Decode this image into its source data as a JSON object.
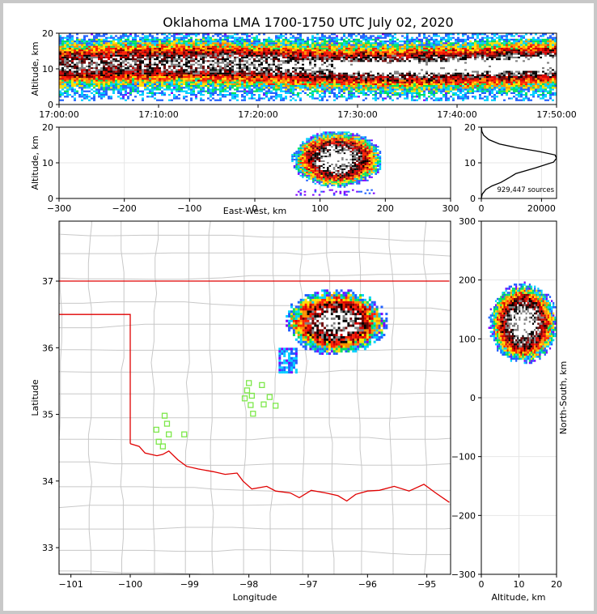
{
  "title": "Oklahoma LMA 1700-1750 UTC July 02, 2020",
  "colors": {
    "state_border": "#e00000",
    "county_lines": "#c8c8c8",
    "stations": "#7de84a",
    "grid": "#e6e6e6",
    "density_scale": [
      "#7a00ff",
      "#2060ff",
      "#00d0ff",
      "#00e060",
      "#ffe000",
      "#ff9000",
      "#ff2000",
      "#d80000",
      "#700000",
      "#000000",
      "#808080",
      "#ffffff"
    ]
  },
  "chart_data": [
    {
      "name": "time-altitude",
      "type": "heatmap",
      "ylabel": "Altitude, km",
      "ylim": [
        0,
        20
      ],
      "yticks": [
        "0",
        "10",
        "20"
      ],
      "xticks": [
        "17:00:00",
        "17:10:00",
        "17:20:00",
        "17:30:00",
        "17:40:00",
        "17:50:00"
      ],
      "x_range_minutes": [
        0,
        50
      ]
    },
    {
      "name": "east-west-altitude",
      "type": "heatmap",
      "xlabel": "East-West, km",
      "ylabel": "Altitude, km",
      "xlim": [
        -300,
        300
      ],
      "ylim": [
        0,
        20
      ],
      "xticks": [
        "−300",
        "−200",
        "−100",
        "0",
        "100",
        "200",
        "300"
      ],
      "yticks": [
        "0",
        "10",
        "20"
      ]
    },
    {
      "name": "altitude-histogram",
      "type": "line",
      "xlim": [
        0,
        25000
      ],
      "ylim": [
        0,
        20
      ],
      "xticks": [
        "0",
        "20000"
      ],
      "yticks": [
        "0",
        "10",
        "20"
      ],
      "annotation": "929,447 sources",
      "x": [
        0,
        300,
        1500,
        3500,
        6500,
        9200,
        11500,
        18000,
        24000,
        25000,
        24500,
        19000,
        12000,
        6000,
        2500,
        800,
        200,
        50
      ],
      "y": [
        0,
        1.2,
        2.5,
        3.5,
        4.5,
        5.8,
        7.0,
        8.6,
        10.2,
        11.3,
        12.2,
        13.2,
        14.2,
        15.3,
        16.5,
        17.7,
        18.8,
        20
      ]
    },
    {
      "name": "plan-view",
      "type": "heatmap",
      "xlabel": "Longitude",
      "ylabel": "Latitude",
      "xlim": [
        -101.2,
        -94.6
      ],
      "ylim": [
        32.6,
        37.9
      ],
      "xticks": [
        "−101",
        "−100",
        "−99",
        "−98",
        "−97",
        "−96",
        "−95"
      ],
      "yticks": [
        "33",
        "34",
        "35",
        "36",
        "37"
      ],
      "stations_lonlat": [
        [
          -98.0,
          35.47
        ],
        [
          -98.03,
          35.36
        ],
        [
          -97.78,
          35.44
        ],
        [
          -98.07,
          35.24
        ],
        [
          -97.95,
          35.28
        ],
        [
          -97.65,
          35.26
        ],
        [
          -97.97,
          35.14
        ],
        [
          -97.75,
          35.15
        ],
        [
          -97.55,
          35.13
        ],
        [
          -97.93,
          35.01
        ],
        [
          -99.42,
          34.98
        ],
        [
          -99.38,
          34.86
        ],
        [
          -99.56,
          34.77
        ],
        [
          -99.35,
          34.7
        ],
        [
          -99.09,
          34.7
        ],
        [
          -99.52,
          34.59
        ],
        [
          -99.45,
          34.52
        ]
      ]
    },
    {
      "name": "north-south-altitude",
      "type": "heatmap",
      "xlabel": "Altitude, km",
      "ylabel": "North-South, km",
      "xlim": [
        0,
        20
      ],
      "ylim": [
        -300,
        300
      ],
      "xticks": [
        "0",
        "10",
        "20"
      ],
      "yticks": [
        "−300",
        "−200",
        "−100",
        "0",
        "100",
        "200",
        "300"
      ]
    }
  ]
}
